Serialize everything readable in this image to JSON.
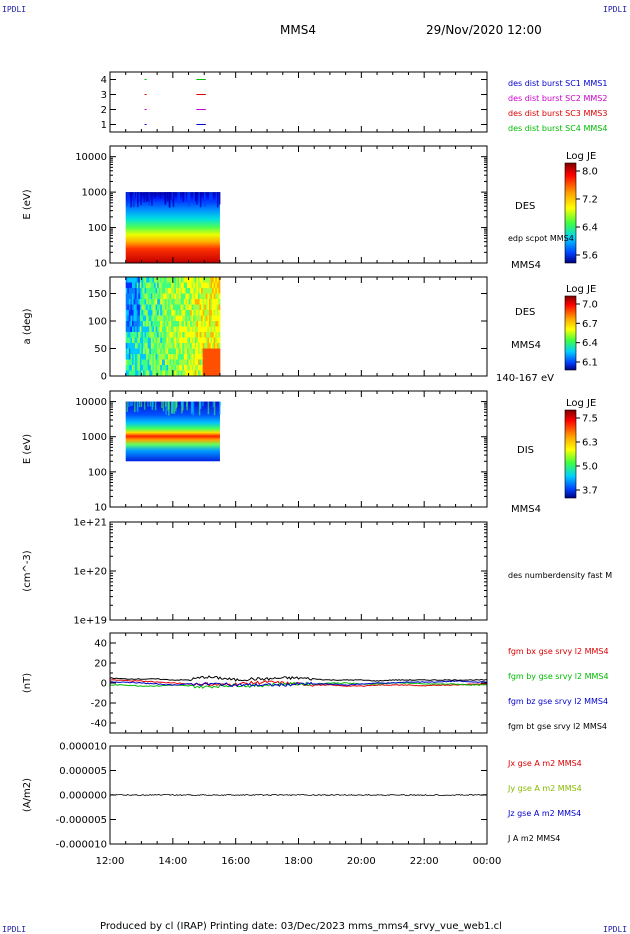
{
  "header": {
    "corner_left": "IPDLI",
    "corner_right": "IPDLI",
    "spacecraft": "MMS4",
    "datetime": "29/Nov/2020 12:00"
  },
  "footer": {
    "text": "Produced by cl (IRAP)   Printing date: 03/Dec/2023   mms_mms4_srvy_vue_web1.cl",
    "corner_left": "IPDLI",
    "corner_right": "IPDLI"
  },
  "chart_data": [
    {
      "type": "scatter",
      "panel": "burst",
      "yticks": [
        "1",
        "2",
        "3",
        "4"
      ],
      "ylim": [
        0.5,
        4.5
      ],
      "legend": [
        {
          "label": "des dist burst SC1 MMS1",
          "color": "#0000cc"
        },
        {
          "label": "des dist burst SC2 MMS2",
          "color": "#cc00cc"
        },
        {
          "label": "des dist burst SC3 MMS3",
          "color": "#dd0000"
        },
        {
          "label": "des dist burst SC4 MMS4",
          "color": "#00bb00"
        }
      ],
      "segments": [
        {
          "sc": 1,
          "x": [
            13.1,
            13.15
          ],
          "color": "#0000cc"
        },
        {
          "sc": 1,
          "x": [
            14.75,
            15.05
          ],
          "color": "#0000cc"
        },
        {
          "sc": 2,
          "x": [
            13.1,
            13.15
          ],
          "color": "#cc00cc"
        },
        {
          "sc": 2,
          "x": [
            14.75,
            15.05
          ],
          "color": "#cc00cc"
        },
        {
          "sc": 3,
          "x": [
            13.1,
            13.15
          ],
          "color": "#dd0000"
        },
        {
          "sc": 3,
          "x": [
            14.75,
            15.05
          ],
          "color": "#dd0000"
        },
        {
          "sc": 4,
          "x": [
            13.1,
            13.15
          ],
          "color": "#00bb00"
        },
        {
          "sc": 4,
          "x": [
            14.75,
            15.05
          ],
          "color": "#00bb00"
        }
      ]
    },
    {
      "type": "heatmap",
      "panel": "des_energy",
      "ylabel": "E (eV)",
      "yscale": "log",
      "ylim": [
        10,
        20000
      ],
      "yticks": [
        "10",
        "100",
        "1000",
        "10000"
      ],
      "data_x": [
        12.5,
        15.5
      ],
      "data_y": [
        10,
        1000
      ],
      "label": "DES",
      "label2": "edp scpot MMS4",
      "label3": "MMS4",
      "colorbar": {
        "title": "Log JE",
        "ticks": [
          "8.0",
          "7.2",
          "6.4",
          "5.6"
        ]
      }
    },
    {
      "type": "heatmap",
      "panel": "des_pitch",
      "ylabel": "a (deg)",
      "ylim": [
        0,
        180
      ],
      "yticks": [
        "0",
        "50",
        "100",
        "150"
      ],
      "data_x": [
        12.5,
        15.5
      ],
      "label": "DES",
      "label2": "MMS4",
      "label3": "140-167 eV",
      "colorbar": {
        "title": "Log JE",
        "ticks": [
          "7.0",
          "6.7",
          "6.4",
          "6.1"
        ]
      }
    },
    {
      "type": "heatmap",
      "panel": "dis_energy",
      "ylabel": "E (eV)",
      "yscale": "log",
      "ylim": [
        10,
        20000
      ],
      "yticks": [
        "10",
        "100",
        "1000",
        "10000"
      ],
      "data_x": [
        12.5,
        15.5
      ],
      "data_y": [
        200,
        10000
      ],
      "label": "DIS",
      "label2": "MMS4",
      "colorbar": {
        "title": "Log JE",
        "ticks": [
          "7.5",
          "6.3",
          "5.0",
          "3.7"
        ]
      }
    },
    {
      "type": "line",
      "panel": "density",
      "ylabel": "(cm^-3)",
      "yscale": "log",
      "ylim": [
        1e+19,
        1e+21
      ],
      "yticks": [
        "1e+19",
        "1e+20",
        "1e+21"
      ],
      "legend": [
        {
          "label": "des numberdensity fast M",
          "color": "#000000"
        }
      ]
    },
    {
      "type": "line",
      "panel": "fgm",
      "ylabel": "(nT)",
      "ylim": [
        -50,
        50
      ],
      "yticks": [
        "-40",
        "-20",
        "0",
        "20",
        "40"
      ],
      "x": [
        12,
        12.5,
        13,
        13.5,
        14,
        14.5,
        15,
        15.5,
        16,
        16.5,
        17,
        17.5,
        18,
        18.5,
        19,
        19.5,
        20,
        20.5,
        21,
        21.5,
        22,
        22.5,
        23,
        23.5,
        24
      ],
      "series": [
        {
          "name": "fgm bx gse srvy l2 MMS4",
          "color": "#dd0000",
          "values": [
            3,
            2.5,
            2,
            1,
            0,
            -1,
            -1,
            -2,
            -1,
            0,
            1,
            0,
            -1,
            -2,
            -2,
            -3,
            -3,
            -2,
            -2,
            -2,
            -3,
            -2,
            -2,
            -1,
            -1
          ]
        },
        {
          "name": "fgm by gse srvy l2 MMS4",
          "color": "#00bb00",
          "values": [
            -2,
            -2,
            -3,
            -3,
            -2,
            -3,
            -4,
            -3,
            -2,
            -3,
            -2,
            -1,
            -1,
            -1,
            0,
            0,
            -1,
            -1,
            0,
            0,
            -1,
            -1,
            -1,
            -2,
            -2
          ]
        },
        {
          "name": "fgm bz gse srvy l2 MMS4",
          "color": "#0000cc",
          "values": [
            1,
            1,
            0,
            -1,
            -2,
            -1,
            -1,
            -1,
            -2,
            -2,
            -2,
            -2,
            -1,
            -1,
            -1,
            -2,
            -1,
            0,
            0,
            1,
            1,
            1,
            2,
            1,
            1
          ]
        },
        {
          "name": "fgm bt gse srvy l2 MMS4",
          "color": "#000000",
          "values": [
            5,
            4,
            4,
            4,
            3,
            3,
            6,
            5,
            3,
            4,
            4,
            5,
            5,
            4,
            3,
            3,
            3,
            2,
            3,
            3,
            3,
            3,
            3,
            3,
            3
          ]
        }
      ]
    },
    {
      "type": "line",
      "panel": "current",
      "ylabel": "(A/m2)",
      "ylim": [
        -1e-05,
        1e-05
      ],
      "yticks": [
        "-0.000010",
        "-0.000005",
        "0.000000",
        "0.000005",
        "0.000010"
      ],
      "series": [
        {
          "name": "Jx gse A m2 MMS4",
          "color": "#dd0000"
        },
        {
          "name": "Jy gse A m2 MMS4",
          "color": "#88bb00"
        },
        {
          "name": "Jz gse A m2 MMS4",
          "color": "#0000cc"
        },
        {
          "name": "J A m2 MMS4",
          "color": "#000000"
        }
      ]
    }
  ],
  "xaxis": {
    "range": [
      12,
      24
    ],
    "ticks": [
      "12:00",
      "14:00",
      "16:00",
      "18:00",
      "20:00",
      "22:00",
      "00:00"
    ]
  }
}
